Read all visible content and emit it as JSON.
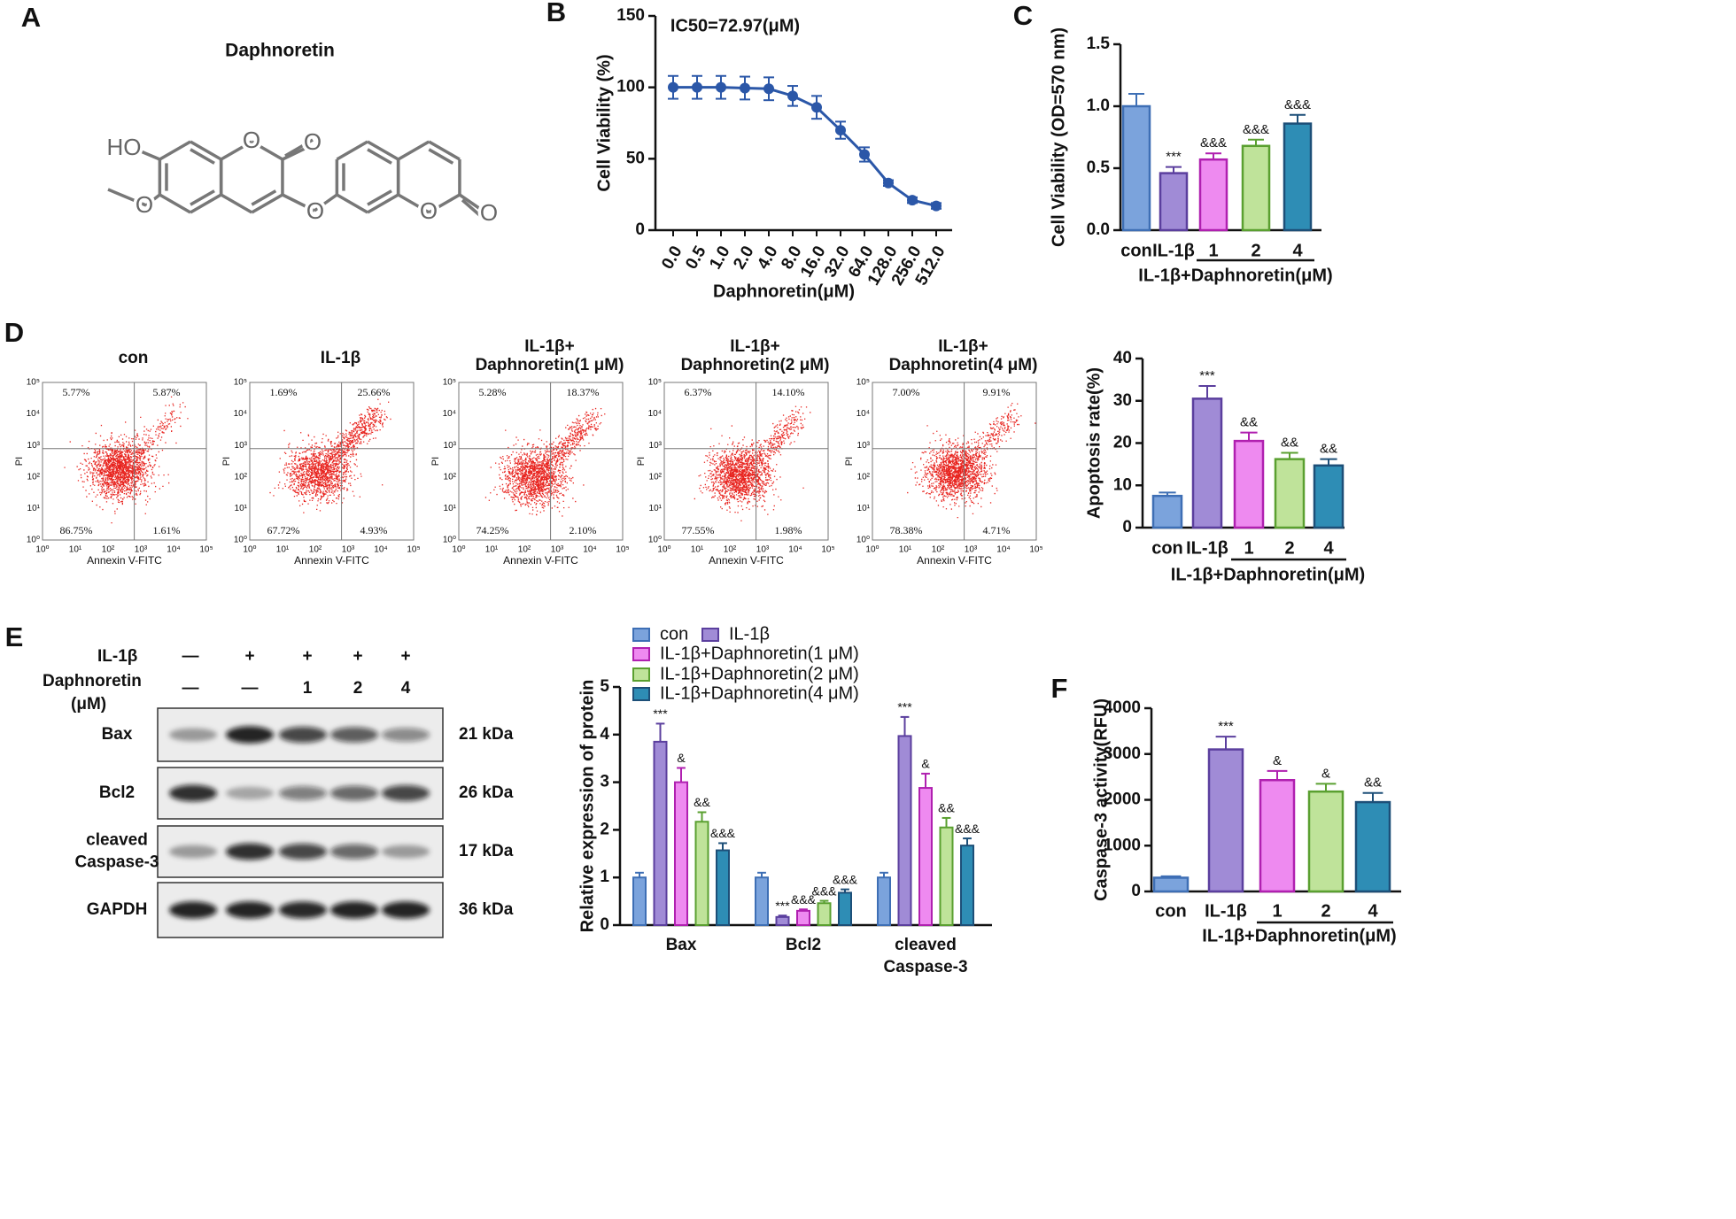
{
  "panel_labels": [
    "A",
    "B",
    "C",
    "D",
    "E",
    "F"
  ],
  "structure": {
    "title": "Daphnoretin",
    "atoms": [
      "HO",
      "O",
      "O",
      "O",
      "O",
      "O",
      "O"
    ]
  },
  "chart_data": [
    {
      "type": "line",
      "title": "IC50=72.97(μM)",
      "x_label": "Daphnoretin(μM)",
      "y_label": "Cell Viability (%)",
      "categories": [
        "0.0",
        "0.5",
        "1.0",
        "2.0",
        "4.0",
        "8.0",
        "16.0",
        "32.0",
        "64.0",
        "128.0",
        "256.0",
        "512.0"
      ],
      "values": [
        100,
        100,
        100,
        99.5,
        99,
        94,
        86,
        70,
        53,
        33,
        21,
        17
      ],
      "errors": [
        8,
        8,
        8,
        8,
        8,
        7,
        8,
        6,
        5,
        2,
        2,
        2
      ],
      "color": "#2b57a8",
      "ylim": [
        0,
        150
      ],
      "yticks": [
        0,
        50,
        100,
        150
      ]
    },
    {
      "type": "bar",
      "y_label": "Cell Viability (OD=570 nm)",
      "group_label": "IL-1β+Daphnoretin(μM)",
      "categories": [
        "con",
        "IL-1β",
        "1",
        "2",
        "4"
      ],
      "values": [
        1.0,
        0.46,
        0.57,
        0.68,
        0.86
      ],
      "errors": [
        0.1,
        0.05,
        0.05,
        0.05,
        0.07
      ],
      "annotations": [
        null,
        "***",
        "&&&",
        "&&&",
        "&&&"
      ],
      "colors": [
        "#7ba3dc",
        "#a08bd6",
        "#ee8af0",
        "#bfe39a",
        "#2e8db5"
      ],
      "edge_colors": [
        "#3e6fb5",
        "#5b3f9e",
        "#b020b0",
        "#5aa030",
        "#1d4f78"
      ],
      "ylim": [
        0,
        1.5
      ],
      "yticks": [
        {
          "value": 0,
          "label": "0.0"
        },
        0.5,
        {
          "value": 1,
          "label": "1.0"
        },
        1.5
      ]
    },
    {
      "type": "bar",
      "y_label": "Apoptosis rate(%)",
      "group_label": "IL-1β+Daphnoretin(μM)",
      "categories": [
        "con",
        "IL-1β",
        "1",
        "2",
        "4"
      ],
      "values": [
        7.5,
        30.5,
        20.5,
        16.2,
        14.7
      ],
      "errors": [
        0.8,
        3,
        2,
        1.5,
        1.5
      ],
      "annotations": [
        null,
        "***",
        "&&",
        "&&",
        "&&"
      ],
      "colors": [
        "#7ba3dc",
        "#a08bd6",
        "#ee8af0",
        "#bfe39a",
        "#2e8db5"
      ],
      "edge_colors": [
        "#3e6fb5",
        "#5b3f9e",
        "#b020b0",
        "#5aa030",
        "#1d4f78"
      ],
      "ylim": [
        0,
        40
      ],
      "yticks": [
        0,
        10,
        20,
        30,
        40
      ]
    },
    {
      "type": "grouped_bar",
      "y_label": "Relative  expression of protein",
      "categories": [
        [
          "Bax"
        ],
        [
          "Bcl2"
        ],
        [
          "cleaved",
          "Caspase-3"
        ]
      ],
      "series": [
        {
          "name": "con",
          "color": "#7ba3dc",
          "edge_color": "#3e6fb5",
          "values": [
            1.0,
            1.0,
            1.0
          ],
          "errors": [
            0.1,
            0.1,
            0.1
          ],
          "annotations": [
            null,
            null,
            null
          ]
        },
        {
          "name": "IL-1β",
          "color": "#a08bd6",
          "edge_color": "#5b3f9e",
          "values": [
            3.85,
            0.17,
            3.97
          ],
          "errors": [
            0.38,
            0.03,
            0.4
          ],
          "annotations": [
            "***",
            "***",
            "***"
          ]
        },
        {
          "name": "IL-1β+Daphnoretin(1 μM)",
          "color": "#ee8af0",
          "edge_color": "#b020b0",
          "values": [
            3.0,
            0.3,
            2.88
          ],
          "errors": [
            0.3,
            0.03,
            0.3
          ],
          "annotations": [
            "&",
            "&&&",
            "&"
          ]
        },
        {
          "name": "IL-1β+Daphnoretin(2 μM)",
          "color": "#bfe39a",
          "edge_color": "#5aa030",
          "values": [
            2.17,
            0.46,
            2.05
          ],
          "errors": [
            0.2,
            0.05,
            0.2
          ],
          "annotations": [
            "&&",
            "&&&",
            "&&"
          ]
        },
        {
          "name": "IL-1β+Daphnoretin(4 μM)",
          "color": "#2e8db5",
          "edge_color": "#1d4f78",
          "values": [
            1.57,
            0.68,
            1.67
          ],
          "errors": [
            0.15,
            0.07,
            0.15
          ],
          "annotations": [
            "&&&",
            "&&&",
            "&&&"
          ]
        }
      ],
      "ylim": [
        0,
        5
      ],
      "yticks": [
        0,
        1,
        2,
        3,
        4,
        5
      ]
    },
    {
      "type": "bar",
      "y_label": "Caspase-3 activity(RFU)",
      "group_label": "IL-1β+Daphnoretin(μM)",
      "categories": [
        "con",
        "IL-1β",
        "1",
        "2",
        "4"
      ],
      "values": [
        300,
        3100,
        2430,
        2180,
        1950
      ],
      "errors": [
        30,
        280,
        200,
        170,
        200
      ],
      "annotations": [
        null,
        "***",
        "&",
        "&",
        "&&"
      ],
      "colors": [
        "#7ba3dc",
        "#a08bd6",
        "#ee8af0",
        "#bfe39a",
        "#2e8db5"
      ],
      "edge_colors": [
        "#3e6fb5",
        "#5b3f9e",
        "#b020b0",
        "#5aa030",
        "#1d4f78"
      ],
      "ylim": [
        0,
        4000
      ],
      "yticks": [
        0,
        1000,
        2000,
        3000,
        4000
      ]
    }
  ],
  "flow": {
    "x_label": "Annexin V-FITC",
    "y_label": "PI",
    "ticks": [
      "10⁰",
      "10¹",
      "10²",
      "10³",
      "10⁴",
      "10⁵"
    ],
    "plots": [
      {
        "title": [
          "con"
        ],
        "quadrants": [
          "5.77%",
          "5.87%",
          "86.75%",
          "1.61%"
        ]
      },
      {
        "title": [
          "IL-1β"
        ],
        "quadrants": [
          "1.69%",
          "25.66%",
          "67.72%",
          "4.93%"
        ]
      },
      {
        "title": [
          "IL-1β+",
          "Daphnoretin(1 μM)"
        ],
        "quadrants": [
          "5.28%",
          "18.37%",
          "74.25%",
          "2.10%"
        ]
      },
      {
        "title": [
          "IL-1β+",
          "Daphnoretin(2 μM)"
        ],
        "quadrants": [
          "6.37%",
          "14.10%",
          "77.55%",
          "1.98%"
        ]
      },
      {
        "title": [
          "IL-1β+",
          "Daphnoretin(4 μM)"
        ],
        "quadrants": [
          "7.00%",
          "9.91%",
          "78.38%",
          "4.71%"
        ]
      }
    ]
  },
  "western": {
    "treatments": [
      {
        "label": [
          "IL-1β"
        ],
        "marks": [
          "—",
          "+",
          "+",
          "+",
          "+"
        ]
      },
      {
        "label": [
          "Daphnoretin",
          "(μM)"
        ],
        "marks": [
          "—",
          "—",
          "1",
          "2",
          "4"
        ]
      }
    ],
    "blots": [
      {
        "label": [
          "Bax"
        ],
        "size": "21 kDa"
      },
      {
        "label": [
          "Bcl2"
        ],
        "size": "26 kDa"
      },
      {
        "label": [
          "cleaved",
          "Caspase-3"
        ],
        "size": "17 kDa"
      },
      {
        "label": [
          "GAPDH"
        ],
        "size": "36 kDa"
      }
    ]
  }
}
